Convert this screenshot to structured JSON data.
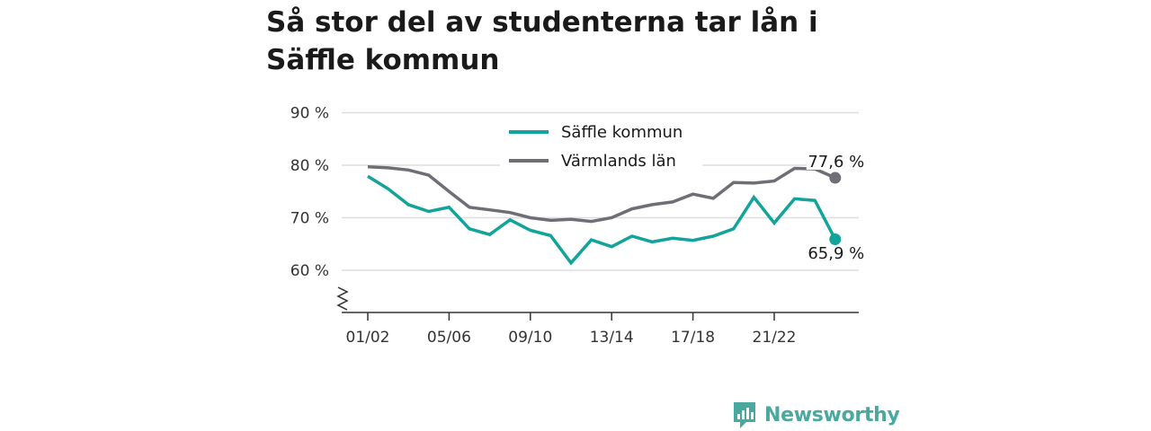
{
  "title": "Så stor del av studenterna tar lån i Säffle kommun",
  "brand": {
    "name": "Newsworthy",
    "icon": "newsworthy-logo-icon",
    "color": "#4aa89f"
  },
  "chart_data": {
    "type": "line",
    "title": "Så stor del av studenterna tar lån i Säffle kommun",
    "xlabel": "",
    "ylabel": "",
    "x": [
      "01/02",
      "02/03",
      "03/04",
      "04/05",
      "05/06",
      "06/07",
      "07/08",
      "08/09",
      "09/10",
      "10/11",
      "11/12",
      "12/13",
      "13/14",
      "14/15",
      "15/16",
      "16/17",
      "17/18",
      "18/19",
      "19/20",
      "20/21",
      "21/22",
      "22/23",
      "23/24",
      "24/25"
    ],
    "x_tick_labels": [
      "01/02",
      "05/06",
      "09/10",
      "13/14",
      "17/18",
      "21/22"
    ],
    "y_ticks": [
      60,
      70,
      80,
      90
    ],
    "y_tick_labels": [
      "60 %",
      "70 %",
      "80 %",
      "90 %"
    ],
    "ylim": [
      52,
      90
    ],
    "axis_break": true,
    "grid": true,
    "legend_position": "top-center",
    "series": [
      {
        "name": "Säffle kommun",
        "color": "#12a39a",
        "values": [
          77.9,
          75.5,
          72.5,
          71.2,
          72.0,
          67.9,
          66.8,
          69.6,
          67.6,
          66.6,
          61.4,
          65.8,
          64.5,
          66.5,
          65.4,
          66.1,
          65.7,
          66.5,
          67.9,
          73.9,
          69.0,
          73.6,
          73.3,
          65.9
        ],
        "end_label": "65,9 %"
      },
      {
        "name": "Värmlands län",
        "color": "#6f6e76",
        "values": [
          79.7,
          79.5,
          79.1,
          78.1,
          75.0,
          72.0,
          71.5,
          71.0,
          70.0,
          69.5,
          69.7,
          69.3,
          70.0,
          71.7,
          72.5,
          73.0,
          74.5,
          73.7,
          76.7,
          76.6,
          77.0,
          79.4,
          79.3,
          77.6
        ],
        "end_label": "77,6 %"
      }
    ]
  }
}
